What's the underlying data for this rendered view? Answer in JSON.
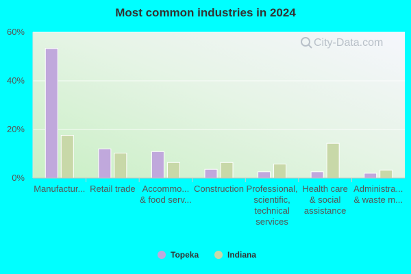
{
  "chart_data": {
    "type": "bar",
    "title": "Most common industries in 2024",
    "categories": [
      [
        "Manufactur..."
      ],
      [
        "Retail trade"
      ],
      [
        "Accommo...",
        "& food serv..."
      ],
      [
        "Construction"
      ],
      [
        "Professional,",
        "scientific,",
        "technical",
        "services"
      ],
      [
        "Health care",
        "& social",
        "assistance"
      ],
      [
        "Administra...",
        "& waste m..."
      ]
    ],
    "series": [
      {
        "name": "Topeka",
        "color": "#c0a8dc",
        "values": [
          53.3,
          12.0,
          10.9,
          3.6,
          2.6,
          2.6,
          2.0
        ]
      },
      {
        "name": "Indiana",
        "color": "#c8d8a8",
        "values": [
          17.6,
          10.3,
          6.4,
          6.4,
          5.8,
          14.3,
          3.3
        ]
      }
    ],
    "y_ticks": [
      "0%",
      "20%",
      "40%",
      "60%"
    ],
    "y_tick_values": [
      0,
      20,
      40,
      60
    ],
    "ylim": [
      0,
      60
    ],
    "legend_position": "bottom-center",
    "grid": true,
    "watermark": "City-Data.com"
  }
}
